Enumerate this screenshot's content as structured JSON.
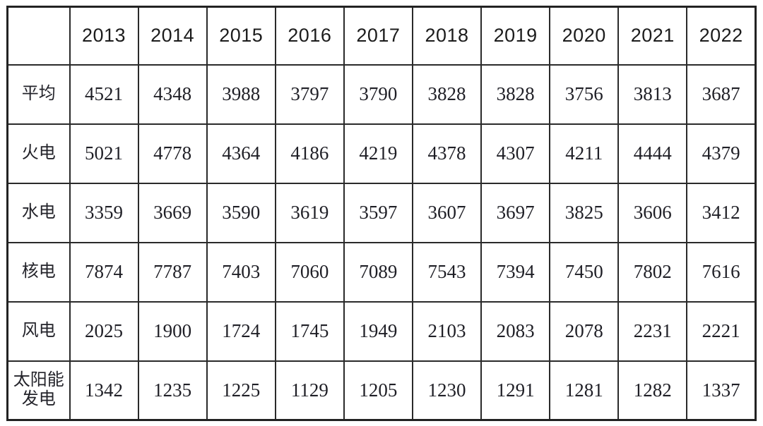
{
  "chart_data": {
    "type": "table",
    "title": "",
    "corner_label": "",
    "categories": [
      "2013",
      "2014",
      "2015",
      "2016",
      "2017",
      "2018",
      "2019",
      "2020",
      "2021",
      "2022"
    ],
    "series": [
      {
        "name": "平均",
        "values": [
          4521,
          4348,
          3988,
          3797,
          3790,
          3828,
          3828,
          3756,
          3813,
          3687
        ]
      },
      {
        "name": "火电",
        "values": [
          5021,
          4778,
          4364,
          4186,
          4219,
          4378,
          4307,
          4211,
          4444,
          4379
        ]
      },
      {
        "name": "水电",
        "values": [
          3359,
          3669,
          3590,
          3619,
          3597,
          3607,
          3697,
          3825,
          3606,
          3412
        ]
      },
      {
        "name": "核电",
        "values": [
          7874,
          7787,
          7403,
          7060,
          7089,
          7543,
          7394,
          7450,
          7802,
          7616
        ]
      },
      {
        "name": "风电",
        "values": [
          2025,
          1900,
          1724,
          1745,
          1949,
          2103,
          2083,
          2078,
          2231,
          2221
        ]
      },
      {
        "name": "太阳能发电",
        "values": [
          1342,
          1235,
          1225,
          1129,
          1205,
          1230,
          1291,
          1281,
          1282,
          1337
        ]
      }
    ],
    "layout": {
      "grid": true,
      "background": "#ffffff",
      "border_color": "#2a2a2a",
      "header_text_color": "#1c1c1c",
      "cell_text_color": "#1f1f26"
    }
  }
}
